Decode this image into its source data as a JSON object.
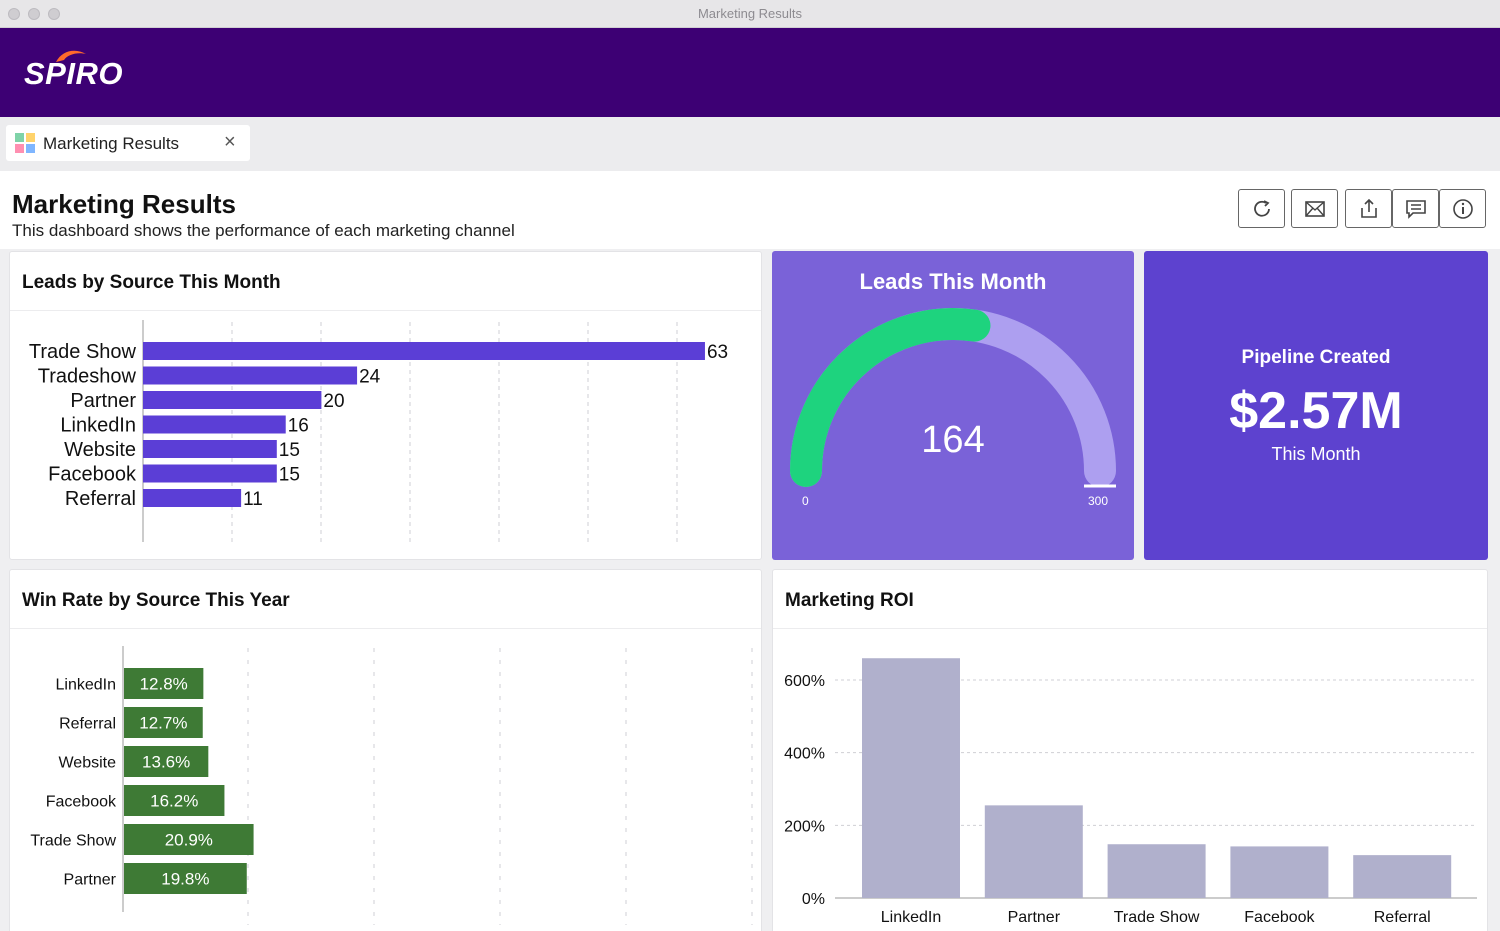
{
  "window": {
    "title": "Marketing Results"
  },
  "app": {
    "logo": "SPIRO",
    "brand_color": "#3d0074"
  },
  "tab": {
    "label": "Marketing Results",
    "close": "×"
  },
  "page": {
    "title": "Marketing Results",
    "subtitle": "This dashboard shows the performance of each marketing channel"
  },
  "toolbar": {
    "icons": [
      "refresh-icon",
      "email-icon",
      "share-icon",
      "comment-icon",
      "info-icon"
    ]
  },
  "leads_by_source": {
    "title": "Leads by Source This Month",
    "chart_data": {
      "type": "bar",
      "orientation": "horizontal",
      "categories": [
        "Trade Show",
        "Tradeshow",
        "Partner",
        "LinkedIn",
        "Website",
        "Facebook",
        "Referral"
      ],
      "values": [
        63,
        24,
        20,
        16,
        15,
        15,
        11
      ],
      "color": "#5b3ed6"
    }
  },
  "leads_this_month": {
    "title": "Leads This Month",
    "value": "164",
    "min": "0",
    "max": "300",
    "fill_color": "#1ed37e",
    "bg_color": "#7a62d8"
  },
  "pipeline": {
    "title": "Pipeline Created",
    "value": "$2.57M",
    "sub": "This Month",
    "bg_color": "#5d42cf"
  },
  "win_rate": {
    "title": "Win Rate by Source This Year",
    "chart_data": {
      "type": "bar",
      "orientation": "horizontal",
      "categories": [
        "LinkedIn",
        "Referral",
        "Website",
        "Facebook",
        "Trade Show",
        "Partner"
      ],
      "values": [
        12.8,
        12.7,
        13.6,
        16.2,
        20.9,
        19.8
      ],
      "labels": [
        "12.8%",
        "12.7%",
        "13.6%",
        "16.2%",
        "20.9%",
        "19.8%"
      ],
      "color": "#3e7a35"
    }
  },
  "roi": {
    "title": "Marketing ROI",
    "chart_data": {
      "type": "bar",
      "categories": [
        "LinkedIn",
        "Partner",
        "Trade Show",
        "Facebook",
        "Referral"
      ],
      "values": [
        660,
        255,
        148,
        142,
        118
      ],
      "ylim": [
        0,
        700
      ],
      "yticks": [
        0,
        200,
        400,
        600
      ],
      "ytick_labels": [
        "0%",
        "200%",
        "400%",
        "600%"
      ],
      "color": "#b0b0cc"
    }
  }
}
